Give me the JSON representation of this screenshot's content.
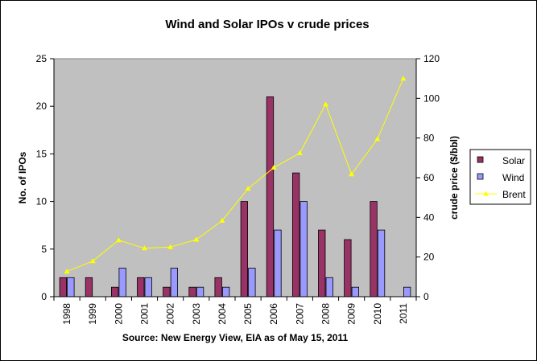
{
  "chart_data": {
    "type": "bar",
    "title": "Wind and Solar IPOs v crude prices",
    "source_note": "Source: New Energy View, EIA as of May 15, 2011",
    "categories": [
      "1998",
      "1999",
      "2000",
      "2001",
      "2002",
      "2003",
      "2004",
      "2005",
      "2006",
      "2007",
      "2008",
      "2009",
      "2010",
      "2011"
    ],
    "ylabel": "No. of IPOs",
    "ylim": [
      0,
      25
    ],
    "yticks": [
      "0",
      "5",
      "10",
      "15",
      "20",
      "25"
    ],
    "y2label": "crude price ($/bbl)",
    "y2lim": [
      0,
      120
    ],
    "y2ticks": [
      "0",
      "20",
      "40",
      "60",
      "80",
      "100",
      "120"
    ],
    "legend_position": "right",
    "series": [
      {
        "name": "Solar",
        "kind": "bar",
        "axis": "left",
        "color": "#993366",
        "values": [
          2,
          2,
          1,
          2,
          1,
          1,
          2,
          10,
          21,
          13,
          7,
          6,
          10,
          0
        ]
      },
      {
        "name": "Wind",
        "kind": "bar",
        "axis": "left",
        "color": "#9999ff",
        "values": [
          2,
          0,
          3,
          2,
          3,
          1,
          1,
          3,
          7,
          10,
          2,
          1,
          7,
          1
        ]
      },
      {
        "name": "Brent",
        "kind": "line",
        "axis": "right",
        "color": "#ffff00",
        "values": [
          12.7,
          17.9,
          28.5,
          24.4,
          25.0,
          28.8,
          38.3,
          54.5,
          65.1,
          72.4,
          97.0,
          61.7,
          79.5,
          110.0
        ]
      }
    ]
  },
  "colors": {
    "plot_background": "#c0c0c0",
    "outer_border": "#000000"
  }
}
